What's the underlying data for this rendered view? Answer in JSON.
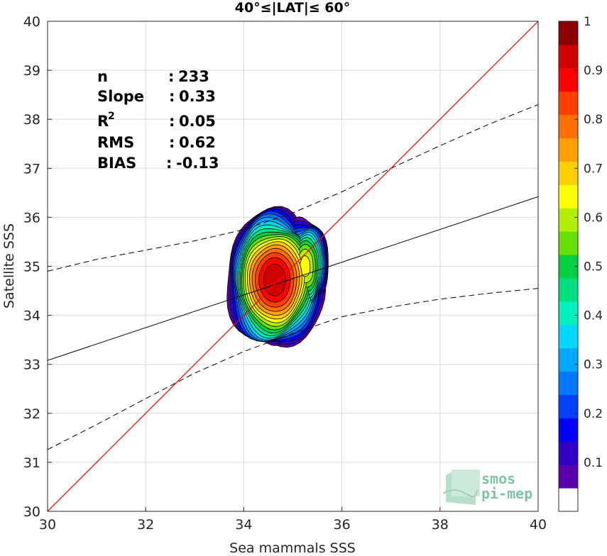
{
  "chart_data": {
    "type": "contour",
    "title": "40°≤|LAT|≤ 60°",
    "xlabel": "Sea mammals SSS",
    "ylabel": "Satellite SSS",
    "xlim": [
      30,
      40
    ],
    "ylim": [
      30,
      40
    ],
    "xticks": [
      "30",
      "32",
      "34",
      "36",
      "38",
      "40"
    ],
    "yticks": [
      "30",
      "31",
      "32",
      "33",
      "34",
      "35",
      "36",
      "37",
      "38",
      "39",
      "40"
    ],
    "grid": true,
    "stats": [
      {
        "label": "n",
        "sep": ":",
        "value": "233"
      },
      {
        "label": "Slope",
        "sep": ":",
        "value": "0.33"
      },
      {
        "label": "R",
        "sup": "2",
        "sep": ":",
        "value": "0.05"
      },
      {
        "label": "RMS",
        "sep": ":",
        "value": "0.62"
      },
      {
        "label": "BIAS",
        "sep": ":",
        "value": "-0.13"
      }
    ],
    "identity_line": {
      "x": [
        30,
        40
      ],
      "y": [
        30,
        40
      ],
      "color": "#ff0000"
    },
    "regression_line": {
      "x": [
        30,
        40
      ],
      "y": [
        33.08,
        36.42
      ],
      "color": "#000000"
    },
    "confidence_upper": {
      "x": [
        30,
        31,
        32,
        33,
        34,
        35,
        36,
        37,
        38,
        39,
        40
      ],
      "y": [
        34.9,
        35.14,
        35.33,
        35.52,
        35.75,
        36.09,
        36.52,
        37.0,
        37.46,
        37.9,
        38.3
      ]
    },
    "confidence_lower": {
      "x": [
        30,
        31,
        32,
        33,
        34,
        35,
        36,
        37,
        38,
        39,
        40
      ],
      "y": [
        31.26,
        31.77,
        32.3,
        32.82,
        33.26,
        33.63,
        33.97,
        34.17,
        34.33,
        34.45,
        34.55
      ]
    },
    "density_levels": [
      0.05,
      0.1,
      0.15,
      0.2,
      0.25,
      0.3,
      0.35,
      0.4,
      0.45,
      0.5,
      0.55,
      0.6,
      0.65,
      0.7,
      0.75,
      0.8,
      0.85,
      0.9,
      0.95
    ],
    "density_peaks": [
      {
        "x": 34.63,
        "y": 34.72,
        "value": 1.0
      },
      {
        "x": 35.25,
        "y": 35.0,
        "value": 0.68
      },
      {
        "x": 34.55,
        "y": 33.95,
        "value": 0.55
      }
    ],
    "colorbar": {
      "ticks": [
        "0.1",
        "0.2",
        "0.3",
        "0.4",
        "0.5",
        "0.6",
        "0.7",
        "0.8",
        "0.9",
        "1"
      ],
      "range": [
        0,
        1
      ],
      "colors": [
        "#ffffff",
        "#5a00a8",
        "#3000c8",
        "#0000ff",
        "#0040ff",
        "#0078ff",
        "#00a8ff",
        "#00d8ff",
        "#00f0c0",
        "#00e080",
        "#00d040",
        "#66e000",
        "#b0f000",
        "#ffff00",
        "#ffd000",
        "#ffa000",
        "#ff7000",
        "#ff4000",
        "#ff0000",
        "#d00000",
        "#8a0000"
      ]
    },
    "logo": {
      "line1": "smos",
      "line2": "pi-mep"
    }
  }
}
